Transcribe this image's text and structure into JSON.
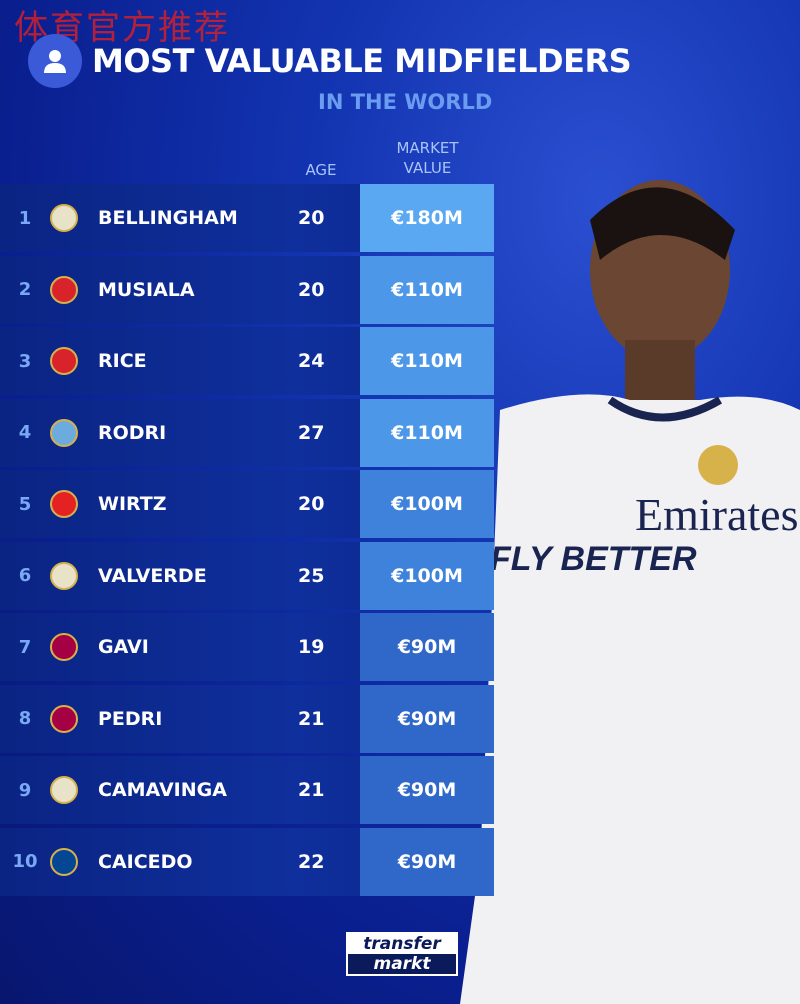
{
  "watermark": "体育官方推荐",
  "title": "MOST VALUABLE MIDFIELDERS",
  "subtitle": "IN THE WORLD",
  "columns": {
    "age": "AGE",
    "value_line1": "MARKET",
    "value_line2": "VALUE"
  },
  "rows": [
    {
      "rank": "1",
      "club": "Real Madrid",
      "crest": "#e8e2c8",
      "name": "BELLINGHAM",
      "age": "20",
      "value": "€180M",
      "shade": "#5aa8f2"
    },
    {
      "rank": "2",
      "club": "Bayern",
      "crest": "#d8232a",
      "name": "MUSIALA",
      "age": "20",
      "value": "€110M",
      "shade": "#4d97e8"
    },
    {
      "rank": "3",
      "club": "Arsenal",
      "crest": "#d8232a",
      "name": "RICE",
      "age": "24",
      "value": "€110M",
      "shade": "#4d97e8"
    },
    {
      "rank": "4",
      "club": "Man City",
      "crest": "#6cabdd",
      "name": "RODRI",
      "age": "27",
      "value": "€110M",
      "shade": "#4d97e8"
    },
    {
      "rank": "5",
      "club": "Leverkusen",
      "crest": "#e32221",
      "name": "WIRTZ",
      "age": "20",
      "value": "€100M",
      "shade": "#3f82dc"
    },
    {
      "rank": "6",
      "club": "Real Madrid",
      "crest": "#e8e2c8",
      "name": "VALVERDE",
      "age": "25",
      "value": "€100M",
      "shade": "#3f82dc"
    },
    {
      "rank": "7",
      "club": "Barcelona",
      "crest": "#a50044",
      "name": "GAVI",
      "age": "19",
      "value": "€90M",
      "shade": "#2f68c8"
    },
    {
      "rank": "8",
      "club": "Barcelona",
      "crest": "#a50044",
      "name": "PEDRI",
      "age": "21",
      "value": "€90M",
      "shade": "#2f68c8"
    },
    {
      "rank": "9",
      "club": "Real Madrid",
      "crest": "#e8e2c8",
      "name": "CAMAVINGA",
      "age": "21",
      "value": "€90M",
      "shade": "#2f68c8"
    },
    {
      "rank": "10",
      "club": "Chelsea",
      "crest": "#034694",
      "name": "CAICEDO",
      "age": "22",
      "value": "€90M",
      "shade": "#2f68c8"
    }
  ],
  "player_shirt": {
    "sponsor": "Emirates",
    "slogan": "FLY BETTER"
  },
  "logo": {
    "line1": "transfer",
    "line2": "markt"
  }
}
